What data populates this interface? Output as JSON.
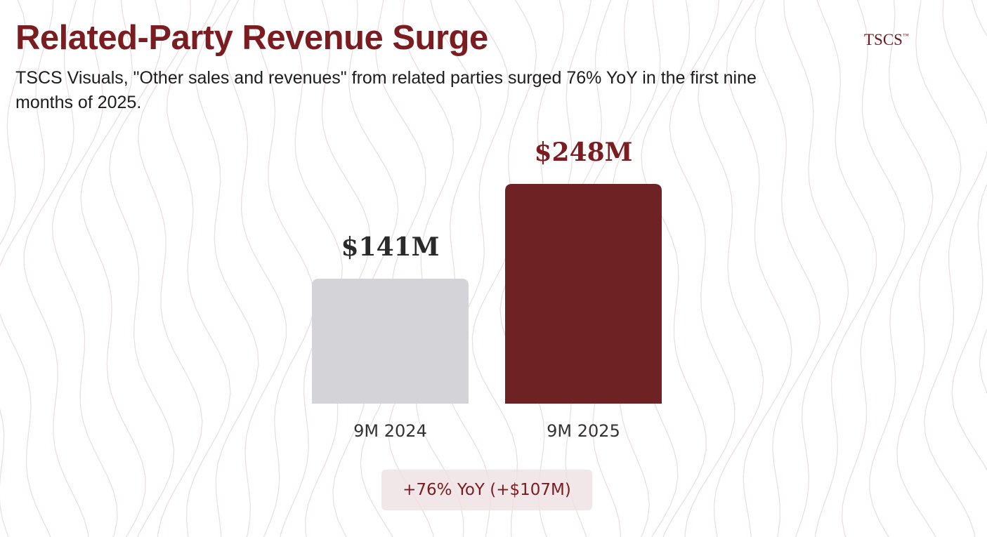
{
  "header": {
    "title": "Related-Party Revenue Surge",
    "logo": "TSCS",
    "logo_mark": "™",
    "subtitle": "TSCS Visuals, \"Other sales and revenues\" from related parties surged 76% YoY in the first nine months of 2025."
  },
  "chart_data": {
    "type": "bar",
    "categories": [
      "9M 2024",
      "9M 2025"
    ],
    "values": [
      141,
      248
    ],
    "data_labels": [
      "$141M",
      "$248M"
    ],
    "colors": [
      "#d3d3d8",
      "#6e2224"
    ],
    "label_colors": [
      "#2a2a2a",
      "#7b1c20"
    ],
    "unit": "$M",
    "ylim": [
      0,
      248
    ],
    "annotation": "+76% YoY (+$107M)"
  }
}
